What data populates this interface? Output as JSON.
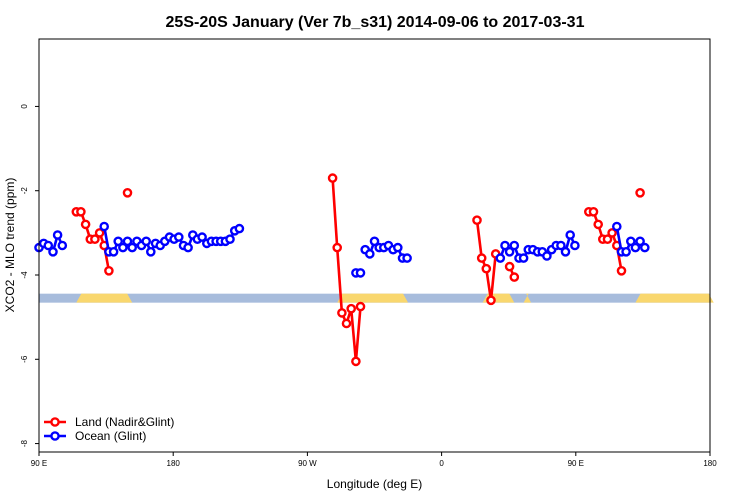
{
  "chart_data": {
    "type": "line",
    "title": "25S-20S January (Ver 7b_s31)   2014-09-06 to 2017-03-31",
    "xlabel": "Longitude (deg E)",
    "ylabel": "XCO2 - MLO trend (ppm)",
    "xlim": [
      90,
      450
    ],
    "ylim": [
      -8.2,
      1.6
    ],
    "x_ticks": [
      {
        "value": 90,
        "label": "90 E"
      },
      {
        "value": 162,
        "label": "180"
      },
      {
        "value": 234,
        "label": "90 W"
      },
      {
        "value": 306,
        "label": "0"
      },
      {
        "value": 378,
        "label": "90 E"
      },
      {
        "value": 450,
        "label": "180"
      }
    ],
    "y_ticks": [
      {
        "value": 0,
        "label": "0"
      },
      {
        "value": -2,
        "label": "-2"
      },
      {
        "value": -4,
        "label": "-4"
      },
      {
        "value": -6,
        "label": "-6"
      },
      {
        "value": -8,
        "label": "-8"
      }
    ],
    "legend": {
      "position": "bottom-left",
      "entries": [
        {
          "label": "Land (Nadir&Glint)",
          "color": "#ff0000"
        },
        {
          "label": "Ocean (Glint)",
          "color": "#0000ff"
        }
      ]
    },
    "surface_bar": {
      "y": -4.55,
      "ocean_color": "#a7bcdc",
      "land_color": "#f9d76e",
      "land_segments": [
        [
          110,
          140
        ],
        [
          250,
          288
        ],
        [
          328,
          345
        ],
        [
          350,
          354
        ],
        [
          410,
          452
        ]
      ]
    },
    "series": [
      {
        "name": "Land (Nadir&Glint)",
        "color": "#ff0000",
        "segments": [
          [
            [
              110,
              -2.5
            ],
            [
              112.5,
              -2.5
            ],
            [
              115,
              -2.8
            ],
            [
              117.5,
              -3.15
            ],
            [
              120,
              -3.15
            ],
            [
              122.5,
              -3.0
            ],
            [
              125,
              -3.3
            ],
            [
              127.5,
              -3.9
            ]
          ],
          [
            [
              137.5,
              -2.05
            ]
          ],
          [
            [
              247.5,
              -1.7
            ],
            [
              250,
              -3.35
            ],
            [
              252.5,
              -4.9
            ],
            [
              255,
              -5.15
            ],
            [
              257.5,
              -4.8
            ],
            [
              260,
              -6.05
            ],
            [
              262.5,
              -4.75
            ]
          ],
          [
            [
              325,
              -2.7
            ],
            [
              327.5,
              -3.6
            ],
            [
              330,
              -3.85
            ],
            [
              332.5,
              -4.6
            ],
            [
              335,
              -3.5
            ]
          ],
          [
            [
              342.5,
              -3.8
            ],
            [
              345,
              -4.05
            ]
          ],
          [
            [
              385,
              -2.5
            ],
            [
              387.5,
              -2.5
            ],
            [
              390,
              -2.8
            ],
            [
              392.5,
              -3.15
            ],
            [
              395,
              -3.15
            ],
            [
              397.5,
              -3.0
            ],
            [
              400,
              -3.3
            ],
            [
              402.5,
              -3.9
            ]
          ],
          [
            [
              412.5,
              -2.05
            ]
          ]
        ]
      },
      {
        "name": "Ocean (Glint)",
        "color": "#0000ff",
        "segments": [
          [
            [
              90,
              -3.35
            ],
            [
              92.5,
              -3.25
            ],
            [
              95,
              -3.3
            ],
            [
              97.5,
              -3.45
            ],
            [
              100,
              -3.05
            ],
            [
              102.5,
              -3.3
            ]
          ],
          [
            [
              125,
              -2.85
            ],
            [
              127.5,
              -3.45
            ],
            [
              130,
              -3.45
            ],
            [
              132.5,
              -3.2
            ],
            [
              135,
              -3.35
            ],
            [
              137.5,
              -3.2
            ],
            [
              140,
              -3.35
            ],
            [
              142.5,
              -3.2
            ],
            [
              145,
              -3.3
            ],
            [
              147.5,
              -3.2
            ],
            [
              150,
              -3.45
            ],
            [
              152.5,
              -3.25
            ],
            [
              155,
              -3.3
            ],
            [
              157.5,
              -3.2
            ],
            [
              160,
              -3.1
            ],
            [
              162.5,
              -3.15
            ],
            [
              165,
              -3.1
            ],
            [
              167.5,
              -3.3
            ],
            [
              170,
              -3.35
            ],
            [
              172.5,
              -3.05
            ],
            [
              175,
              -3.15
            ],
            [
              177.5,
              -3.1
            ],
            [
              180,
              -3.25
            ],
            [
              182.5,
              -3.2
            ],
            [
              185,
              -3.2
            ],
            [
              187.5,
              -3.2
            ],
            [
              190,
              -3.2
            ],
            [
              192.5,
              -3.15
            ],
            [
              195,
              -2.95
            ],
            [
              197.5,
              -2.9
            ]
          ],
          [
            [
              260,
              -3.95
            ],
            [
              262.5,
              -3.95
            ]
          ],
          [
            [
              265,
              -3.4
            ],
            [
              267.5,
              -3.5
            ],
            [
              270,
              -3.2
            ],
            [
              272.5,
              -3.35
            ],
            [
              275,
              -3.35
            ],
            [
              277.5,
              -3.3
            ],
            [
              280,
              -3.4
            ],
            [
              282.5,
              -3.35
            ],
            [
              285,
              -3.6
            ],
            [
              287.5,
              -3.6
            ]
          ],
          [
            [
              337.5,
              -3.6
            ],
            [
              340,
              -3.3
            ],
            [
              342.5,
              -3.45
            ],
            [
              345,
              -3.3
            ],
            [
              347.5,
              -3.6
            ],
            [
              350,
              -3.6
            ],
            [
              352.5,
              -3.4
            ],
            [
              355,
              -3.4
            ],
            [
              357.5,
              -3.45
            ],
            [
              360,
              -3.45
            ],
            [
              362.5,
              -3.55
            ],
            [
              365,
              -3.4
            ],
            [
              367.5,
              -3.3
            ],
            [
              370,
              -3.3
            ],
            [
              372.5,
              -3.45
            ],
            [
              375,
              -3.05
            ],
            [
              377.5,
              -3.3
            ]
          ],
          [
            [
              400,
              -2.85
            ],
            [
              402.5,
              -3.45
            ],
            [
              405,
              -3.45
            ],
            [
              407.5,
              -3.2
            ],
            [
              410,
              -3.35
            ],
            [
              412.5,
              -3.2
            ],
            [
              415,
              -3.35
            ]
          ]
        ]
      }
    ]
  }
}
